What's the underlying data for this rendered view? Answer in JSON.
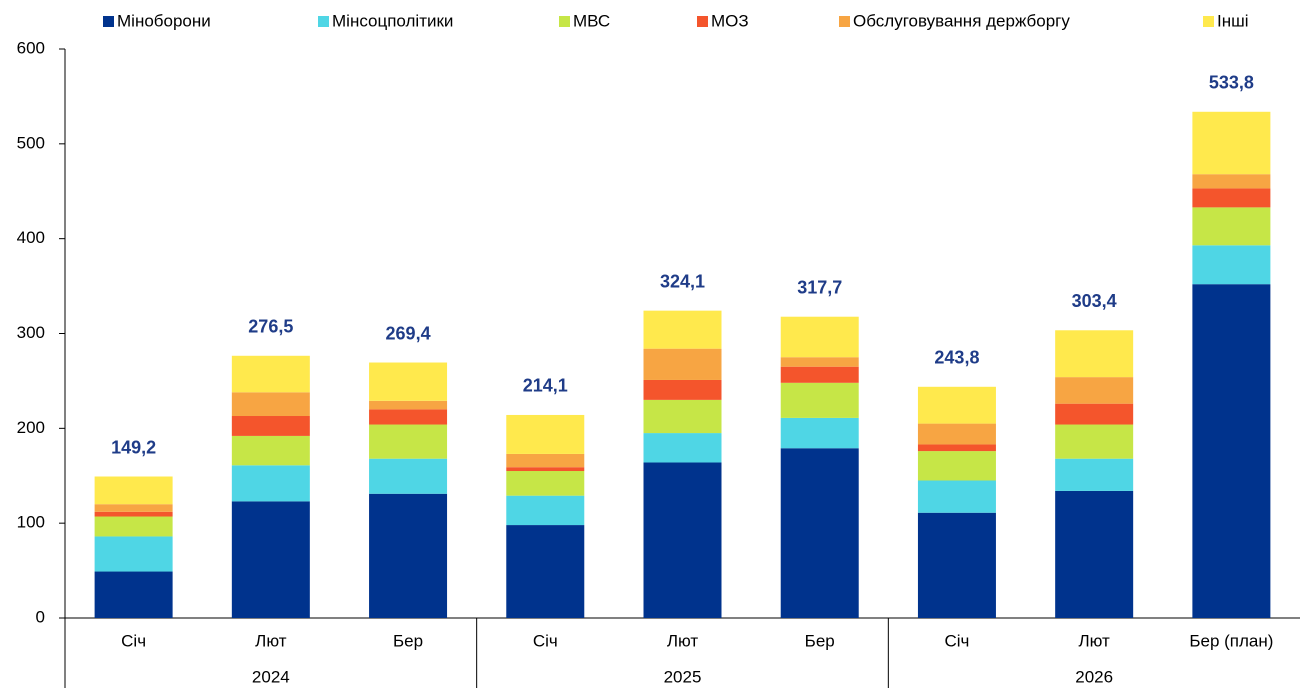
{
  "chart_data": {
    "type": "stacked-bar",
    "categories": [
      "Січ",
      "Лют",
      "Бер",
      "Січ",
      "Лют",
      "Бер",
      "Січ",
      "Лют",
      "Бер (план)"
    ],
    "groups": [
      "2024",
      "2025",
      "2026"
    ],
    "series": [
      {
        "name": "Міноборони",
        "color": "#00338d",
        "values": [
          49,
          123,
          131,
          98,
          164,
          179,
          111,
          134,
          352
        ]
      },
      {
        "name": "Мінсоцполітики",
        "color": "#4fd6e5",
        "values": [
          37,
          38,
          37,
          31,
          31,
          32,
          34,
          34,
          41
        ]
      },
      {
        "name": "МВС",
        "color": "#c6e647",
        "values": [
          21,
          31,
          36,
          26,
          35,
          37,
          31,
          36,
          40
        ]
      },
      {
        "name": "МОЗ",
        "color": "#f4552c",
        "values": [
          5,
          21,
          16,
          4,
          21,
          17,
          7,
          22,
          20
        ]
      },
      {
        "name": "Обслуговування держборгу",
        "color": "#f7a543",
        "values": [
          8,
          25,
          9,
          14,
          33,
          10,
          22,
          28,
          15
        ]
      },
      {
        "name": "Інші",
        "color": "#ffe94d",
        "values": [
          29.2,
          38.5,
          40.4,
          41.1,
          40.1,
          42.7,
          38.8,
          49.4,
          65.8
        ]
      }
    ],
    "totals": [
      149.2,
      276.5,
      269.4,
      214.1,
      324.1,
      317.7,
      243.8,
      303.4,
      533.8
    ],
    "total_labels": [
      "149,2",
      "276,5",
      "269,4",
      "214,1",
      "324,1",
      "317,7",
      "243,8",
      "303,4",
      "533,8"
    ],
    "ylim": [
      0,
      600
    ],
    "yticks": [
      0,
      100,
      200,
      300,
      400,
      500,
      600
    ],
    "legend": "top"
  }
}
